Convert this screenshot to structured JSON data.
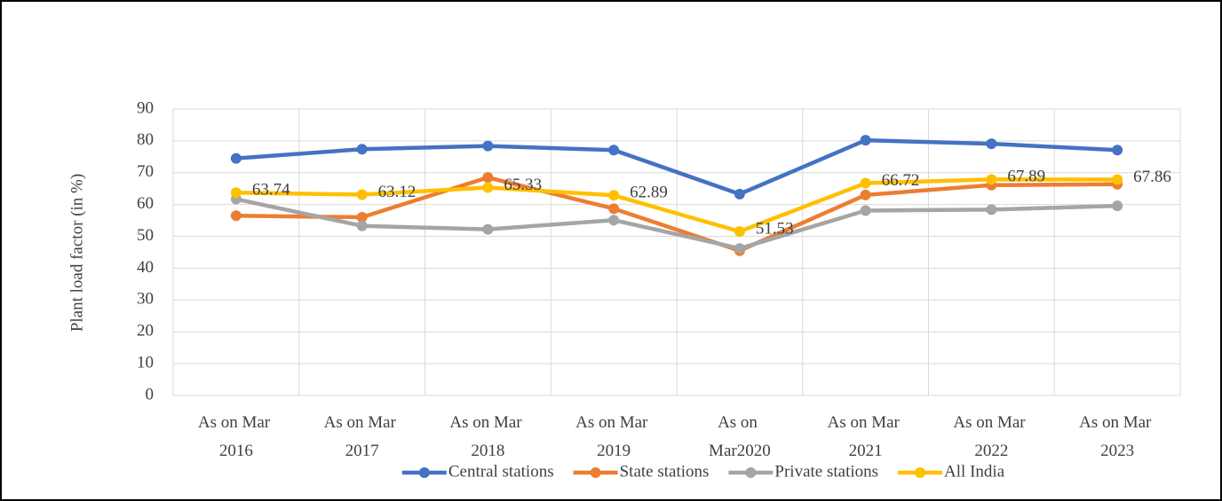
{
  "chart_data": {
    "type": "line",
    "y_label": "Plant load factor (in %)",
    "categories": [
      "As on Mar\n2016",
      "As on Mar\n2017",
      "As on Mar\n2018",
      "As on Mar\n2019",
      "As on\nMar2020",
      "As on Mar\n2021",
      "As on Mar\n2022",
      "As on Mar\n2023"
    ],
    "series": [
      {
        "name": "Central stations",
        "color": "#4472c4",
        "values": [
          74.5,
          77.4,
          78.4,
          77.1,
          63.3,
          80.2,
          79.1,
          77.1
        ]
      },
      {
        "name": "State stations",
        "color": "#ed7d31",
        "values": [
          56.5,
          56.0,
          68.5,
          58.7,
          45.5,
          63.0,
          66.1,
          66.4
        ]
      },
      {
        "name": "Private stations",
        "color": "#a5a5a5",
        "values": [
          61.7,
          53.3,
          52.2,
          55.1,
          46.2,
          58.1,
          58.4,
          59.6
        ]
      },
      {
        "name": "All India",
        "color": "#ffc000",
        "values": [
          63.74,
          63.12,
          65.33,
          62.89,
          51.53,
          66.72,
          67.89,
          67.86
        ],
        "show_labels": true
      }
    ],
    "ylim": [
      0,
      90
    ],
    "yticks": [
      0,
      10,
      20,
      30,
      40,
      50,
      60,
      70,
      80,
      90
    ],
    "grid": true,
    "legend": "bottom"
  }
}
